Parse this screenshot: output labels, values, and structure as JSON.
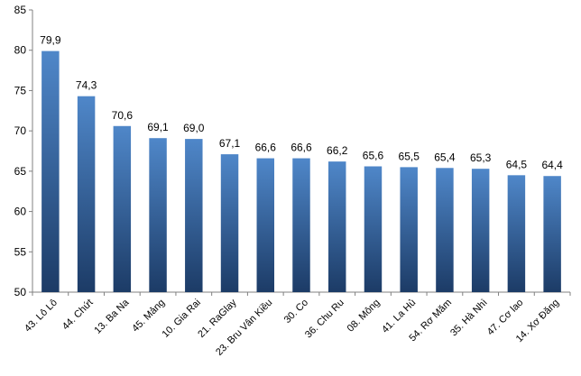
{
  "chart_data": {
    "type": "bar",
    "categories": [
      "43. Lô Lô",
      "44. Chứt",
      "13. Ba Na",
      "45. Mảng",
      "10. Gia Rai",
      "21. RaGlay",
      "23. Bru Vân Kiều",
      "30. Co",
      "36. Chu Ru",
      "08. Mông",
      "41. La Hủ",
      "54. Rơ Măm",
      "35. Hà Nhì",
      "47. Cơ lao",
      "14. Xơ Đăng"
    ],
    "values": [
      79.9,
      74.3,
      70.6,
      69.1,
      69.0,
      67.1,
      66.6,
      66.6,
      66.2,
      65.6,
      65.5,
      65.4,
      65.3,
      64.5,
      64.4
    ],
    "data_labels": [
      "79,9",
      "74,3",
      "70,6",
      "69,1",
      "69,0",
      "67,1",
      "66,6",
      "66,6",
      "66,2",
      "65,6",
      "65,5",
      "65,4",
      "65,3",
      "64,5",
      "64,4"
    ],
    "yticks": [
      50,
      55,
      60,
      65,
      70,
      75,
      80,
      85
    ],
    "ytick_labels": [
      "50",
      "55",
      "60",
      "65",
      "70",
      "75",
      "80",
      "85"
    ],
    "ylim": [
      50,
      85
    ],
    "title": "",
    "xlabel": "",
    "ylabel": "",
    "grid": false,
    "legend": "none",
    "colors": {
      "bar_top": "#4f87c9",
      "bar_bottom": "#1c3b66",
      "axis": "#808080"
    }
  }
}
